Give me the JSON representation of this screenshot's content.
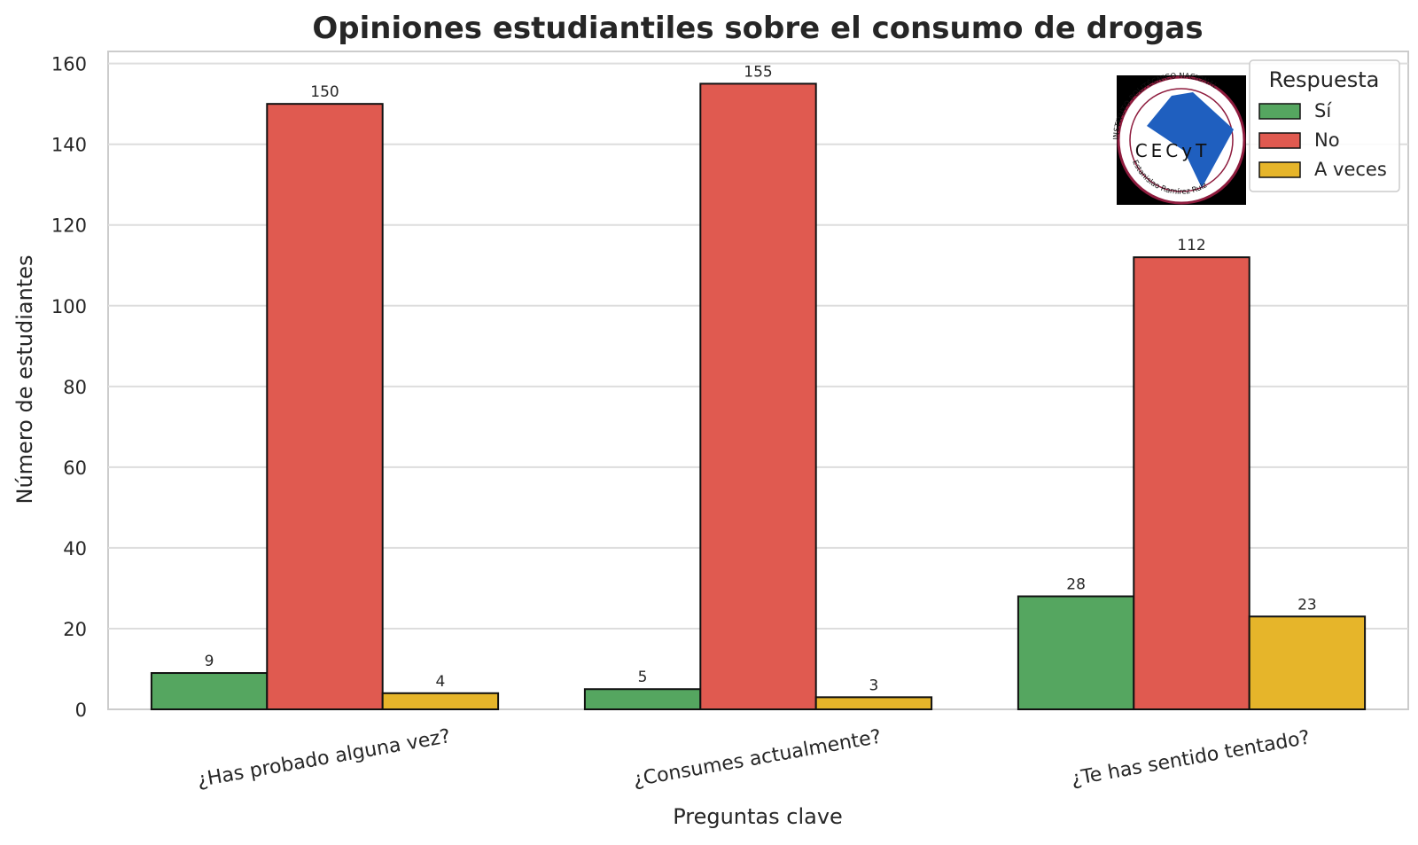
{
  "chart_data": {
    "type": "bar",
    "title": "Opiniones estudiantiles sobre el consumo de drogas",
    "xlabel": "Preguntas clave",
    "ylabel": "Número de estudiantes",
    "categories": [
      "¿Has probado alguna vez?",
      "¿Consumes actualmente?",
      "¿Te has sentido tentado?"
    ],
    "series": [
      {
        "name": "Sí",
        "values": [
          9,
          5,
          28
        ],
        "color": "#55a660"
      },
      {
        "name": "No",
        "values": [
          150,
          155,
          112
        ],
        "color": "#e05a50"
      },
      {
        "name": "A veces",
        "values": [
          4,
          3,
          23
        ],
        "color": "#e6b52a"
      }
    ],
    "ylim": [
      0,
      163
    ],
    "yticks": [
      0,
      20,
      40,
      60,
      80,
      100,
      120,
      140,
      160
    ],
    "grid": true,
    "legend": {
      "title": "Respuesta",
      "placement": "top-right"
    }
  },
  "logo": {
    "ring_text": "INSTITUTO POLITÉCNICO NACIONAL",
    "center_text": "CECyT",
    "bottom_text": "Estanislao Ramírez Ruiz"
  }
}
